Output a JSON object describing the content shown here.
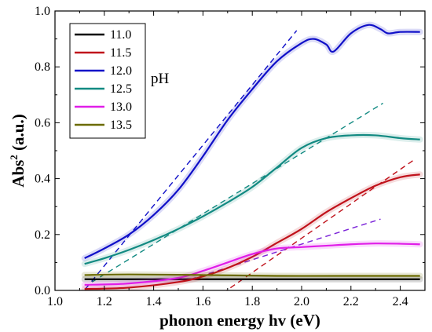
{
  "chart_data": {
    "type": "line",
    "xlabel": "phonon energy hv (eV)",
    "ylabel_main": "Abs",
    "ylabel_sup": "2",
    "ylabel_unit": " (a.u.)",
    "xlim": [
      1.0,
      2.5
    ],
    "ylim": [
      0.0,
      1.0
    ],
    "x_ticks": [
      "1.0",
      "1.2",
      "1.4",
      "1.6",
      "1.8",
      "2.0",
      "2.2",
      "2.4"
    ],
    "y_ticks": [
      "0.0",
      "0.2",
      "0.4",
      "0.6",
      "0.8",
      "1.0"
    ],
    "annotation": "pH",
    "grid": false,
    "legend_position": "top-left",
    "series": [
      {
        "name": "11.0",
        "color": "#000000",
        "x": [
          1.12,
          1.4,
          1.7,
          2.0,
          2.3,
          2.48
        ],
        "y": [
          0.04,
          0.04,
          0.04,
          0.04,
          0.04,
          0.04
        ]
      },
      {
        "name": "11.5",
        "color": "#c0121b",
        "x": [
          1.12,
          1.3,
          1.5,
          1.6,
          1.7,
          1.8,
          1.9,
          2.0,
          2.1,
          2.2,
          2.3,
          2.4,
          2.48
        ],
        "y": [
          0.005,
          0.01,
          0.03,
          0.05,
          0.08,
          0.12,
          0.17,
          0.22,
          0.28,
          0.33,
          0.375,
          0.405,
          0.415
        ]
      },
      {
        "name": "12.0",
        "color": "#1010c8",
        "x": [
          1.12,
          1.2,
          1.3,
          1.4,
          1.5,
          1.6,
          1.7,
          1.8,
          1.9,
          2.0,
          2.05,
          2.1,
          2.13,
          2.2,
          2.27,
          2.32,
          2.35,
          2.4,
          2.48
        ],
        "y": [
          0.115,
          0.15,
          0.2,
          0.27,
          0.36,
          0.48,
          0.61,
          0.72,
          0.82,
          0.885,
          0.9,
          0.88,
          0.855,
          0.92,
          0.95,
          0.935,
          0.92,
          0.925,
          0.925
        ]
      },
      {
        "name": "12.5",
        "color": "#128a82",
        "x": [
          1.12,
          1.2,
          1.3,
          1.4,
          1.5,
          1.6,
          1.7,
          1.8,
          1.9,
          2.0,
          2.1,
          2.2,
          2.3,
          2.4,
          2.48
        ],
        "y": [
          0.095,
          0.115,
          0.145,
          0.18,
          0.22,
          0.265,
          0.315,
          0.37,
          0.44,
          0.51,
          0.545,
          0.555,
          0.555,
          0.545,
          0.54
        ]
      },
      {
        "name": "13.0",
        "color": "#e01ee8",
        "x": [
          1.12,
          1.3,
          1.5,
          1.6,
          1.7,
          1.8,
          1.9,
          2.0,
          2.1,
          2.2,
          2.3,
          2.4,
          2.48
        ],
        "y": [
          0.02,
          0.025,
          0.045,
          0.07,
          0.1,
          0.13,
          0.15,
          0.155,
          0.16,
          0.165,
          0.168,
          0.167,
          0.165
        ]
      },
      {
        "name": "13.5",
        "color": "#6b6b00",
        "x": [
          1.12,
          1.3,
          1.6,
          1.9,
          2.2,
          2.48
        ],
        "y": [
          0.055,
          0.057,
          0.055,
          0.052,
          0.052,
          0.052
        ]
      }
    ],
    "fit_lines": [
      {
        "color": "#1010c8",
        "x": [
          1.1,
          1.98
        ],
        "y": [
          -0.02,
          0.93
        ]
      },
      {
        "color": "#128a82",
        "x": [
          1.15,
          2.33
        ],
        "y": [
          0.03,
          0.67
        ]
      },
      {
        "color": "#c0121b",
        "x": [
          1.68,
          2.46
        ],
        "y": [
          -0.01,
          0.47
        ]
      },
      {
        "color": "#7a22d8",
        "x": [
          1.55,
          2.32
        ],
        "y": [
          0.04,
          0.255
        ]
      }
    ]
  }
}
